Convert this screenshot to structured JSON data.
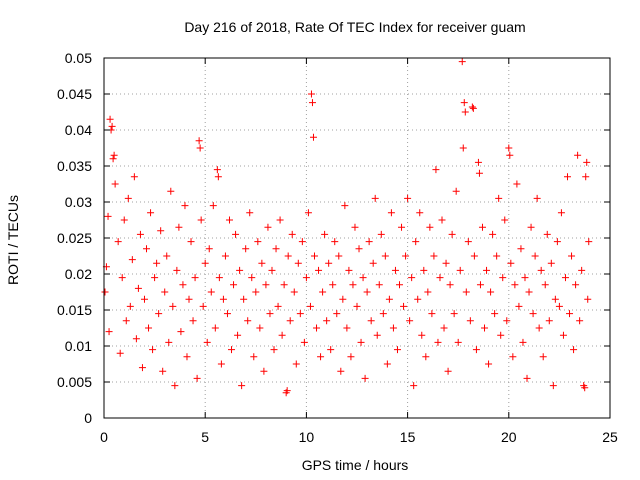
{
  "chart_data": {
    "type": "scatter",
    "title": "Day 216 of 2018, Rate Of TEC Index for receiver guam",
    "xlabel": "GPS time / hours",
    "ylabel": "ROTI / TECUs",
    "xlim": [
      0,
      25
    ],
    "ylim": [
      0,
      0.05
    ],
    "xticks": [
      0,
      5,
      10,
      15,
      20,
      25
    ],
    "xtick_labels": [
      "0",
      "5",
      "10",
      "15",
      "20",
      "25"
    ],
    "yticks": [
      0,
      0.005,
      0.01,
      0.015,
      0.02,
      0.025,
      0.03,
      0.035,
      0.04,
      0.045,
      0.05
    ],
    "ytick_labels": [
      "0",
      "0.005",
      "0.01",
      "0.015",
      "0.02",
      "0.025",
      "0.03",
      "0.035",
      "0.04",
      "0.045",
      "0.05"
    ],
    "grid": true,
    "marker": "+",
    "color": "#ff0000",
    "series": [
      {
        "name": "ROTI",
        "points": [
          [
            0.05,
            0.0175
          ],
          [
            0.12,
            0.021
          ],
          [
            0.2,
            0.028
          ],
          [
            0.25,
            0.012
          ],
          [
            0.3,
            0.0415
          ],
          [
            0.35,
            0.04
          ],
          [
            0.4,
            0.0405
          ],
          [
            0.45,
            0.036
          ],
          [
            0.5,
            0.0365
          ],
          [
            0.55,
            0.0325
          ],
          [
            0.7,
            0.0245
          ],
          [
            0.8,
            0.009
          ],
          [
            0.9,
            0.0195
          ],
          [
            1.0,
            0.0275
          ],
          [
            1.1,
            0.0135
          ],
          [
            1.2,
            0.0305
          ],
          [
            1.3,
            0.0155
          ],
          [
            1.4,
            0.022
          ],
          [
            1.5,
            0.0335
          ],
          [
            1.6,
            0.011
          ],
          [
            1.7,
            0.018
          ],
          [
            1.8,
            0.0255
          ],
          [
            1.9,
            0.007
          ],
          [
            2.0,
            0.0165
          ],
          [
            2.1,
            0.0235
          ],
          [
            2.2,
            0.0125
          ],
          [
            2.3,
            0.0285
          ],
          [
            2.4,
            0.0095
          ],
          [
            2.5,
            0.0195
          ],
          [
            2.6,
            0.0215
          ],
          [
            2.7,
            0.0145
          ],
          [
            2.8,
            0.026
          ],
          [
            2.9,
            0.0065
          ],
          [
            3.0,
            0.0175
          ],
          [
            3.1,
            0.0225
          ],
          [
            3.2,
            0.0105
          ],
          [
            3.3,
            0.0315
          ],
          [
            3.4,
            0.0155
          ],
          [
            3.5,
            0.0045
          ],
          [
            3.6,
            0.0205
          ],
          [
            3.7,
            0.0265
          ],
          [
            3.8,
            0.012
          ],
          [
            3.9,
            0.0185
          ],
          [
            4.0,
            0.0295
          ],
          [
            4.1,
            0.0085
          ],
          [
            4.2,
            0.0165
          ],
          [
            4.3,
            0.0245
          ],
          [
            4.4,
            0.0135
          ],
          [
            4.5,
            0.0195
          ],
          [
            4.6,
            0.0055
          ],
          [
            4.7,
            0.0385
          ],
          [
            4.75,
            0.0375
          ],
          [
            4.8,
            0.0275
          ],
          [
            4.9,
            0.0155
          ],
          [
            5.0,
            0.0215
          ],
          [
            5.1,
            0.0105
          ],
          [
            5.2,
            0.0235
          ],
          [
            5.3,
            0.0175
          ],
          [
            5.4,
            0.0295
          ],
          [
            5.5,
            0.0125
          ],
          [
            5.6,
            0.0345
          ],
          [
            5.65,
            0.0335
          ],
          [
            5.7,
            0.0195
          ],
          [
            5.8,
            0.0075
          ],
          [
            5.9,
            0.0165
          ],
          [
            6.0,
            0.0225
          ],
          [
            6.1,
            0.0145
          ],
          [
            6.2,
            0.0275
          ],
          [
            6.3,
            0.0095
          ],
          [
            6.4,
            0.0185
          ],
          [
            6.5,
            0.0255
          ],
          [
            6.6,
            0.0115
          ],
          [
            6.7,
            0.0205
          ],
          [
            6.8,
            0.0045
          ],
          [
            6.9,
            0.0165
          ],
          [
            7.0,
            0.0235
          ],
          [
            7.1,
            0.0135
          ],
          [
            7.2,
            0.0285
          ],
          [
            7.3,
            0.0195
          ],
          [
            7.4,
            0.0085
          ],
          [
            7.5,
            0.0175
          ],
          [
            7.6,
            0.0245
          ],
          [
            7.7,
            0.0125
          ],
          [
            7.8,
            0.0215
          ],
          [
            7.9,
            0.0065
          ],
          [
            8.0,
            0.0185
          ],
          [
            8.1,
            0.0265
          ],
          [
            8.2,
            0.0145
          ],
          [
            8.3,
            0.0205
          ],
          [
            8.4,
            0.0095
          ],
          [
            8.5,
            0.0235
          ],
          [
            8.6,
            0.0155
          ],
          [
            8.7,
            0.0275
          ],
          [
            8.8,
            0.0115
          ],
          [
            8.9,
            0.0185
          ],
          [
            9.0,
            0.0035
          ],
          [
            9.05,
            0.0038
          ],
          [
            9.1,
            0.0225
          ],
          [
            9.2,
            0.0135
          ],
          [
            9.3,
            0.0255
          ],
          [
            9.4,
            0.0175
          ],
          [
            9.5,
            0.0075
          ],
          [
            9.6,
            0.0215
          ],
          [
            9.7,
            0.0145
          ],
          [
            9.8,
            0.0245
          ],
          [
            9.9,
            0.0105
          ],
          [
            10.0,
            0.0195
          ],
          [
            10.1,
            0.0285
          ],
          [
            10.2,
            0.0155
          ],
          [
            10.25,
            0.045
          ],
          [
            10.3,
            0.0438
          ],
          [
            10.35,
            0.039
          ],
          [
            10.4,
            0.0225
          ],
          [
            10.5,
            0.0125
          ],
          [
            10.6,
            0.0205
          ],
          [
            10.7,
            0.0085
          ],
          [
            10.8,
            0.0175
          ],
          [
            10.9,
            0.0255
          ],
          [
            11.0,
            0.0135
          ],
          [
            11.1,
            0.0215
          ],
          [
            11.2,
            0.0095
          ],
          [
            11.3,
            0.0185
          ],
          [
            11.4,
            0.0245
          ],
          [
            11.5,
            0.0145
          ],
          [
            11.6,
            0.0225
          ],
          [
            11.7,
            0.0065
          ],
          [
            11.8,
            0.0165
          ],
          [
            11.9,
            0.0295
          ],
          [
            12.0,
            0.0125
          ],
          [
            12.1,
            0.0205
          ],
          [
            12.2,
            0.0085
          ],
          [
            12.3,
            0.0185
          ],
          [
            12.4,
            0.0265
          ],
          [
            12.5,
            0.0155
          ],
          [
            12.6,
            0.0235
          ],
          [
            12.7,
            0.0105
          ],
          [
            12.8,
            0.0195
          ],
          [
            12.9,
            0.0055
          ],
          [
            13.0,
            0.0175
          ],
          [
            13.1,
            0.0245
          ],
          [
            13.2,
            0.0135
          ],
          [
            13.3,
            0.0215
          ],
          [
            13.4,
            0.0305
          ],
          [
            13.5,
            0.0115
          ],
          [
            13.6,
            0.0185
          ],
          [
            13.7,
            0.0255
          ],
          [
            13.8,
            0.0145
          ],
          [
            13.9,
            0.0225
          ],
          [
            14.0,
            0.0075
          ],
          [
            14.1,
            0.0165
          ],
          [
            14.2,
            0.0285
          ],
          [
            14.3,
            0.0125
          ],
          [
            14.4,
            0.0205
          ],
          [
            14.5,
            0.0095
          ],
          [
            14.6,
            0.0185
          ],
          [
            14.7,
            0.0265
          ],
          [
            14.8,
            0.0155
          ],
          [
            14.9,
            0.0225
          ],
          [
            15.0,
            0.0305
          ],
          [
            15.1,
            0.0135
          ],
          [
            15.2,
            0.0195
          ],
          [
            15.3,
            0.0045
          ],
          [
            15.4,
            0.0245
          ],
          [
            15.5,
            0.0165
          ],
          [
            15.6,
            0.0285
          ],
          [
            15.7,
            0.0115
          ],
          [
            15.8,
            0.0205
          ],
          [
            15.9,
            0.0085
          ],
          [
            16.0,
            0.0175
          ],
          [
            16.1,
            0.0265
          ],
          [
            16.2,
            0.0145
          ],
          [
            16.3,
            0.0225
          ],
          [
            16.4,
            0.0345
          ],
          [
            16.5,
            0.0105
          ],
          [
            16.6,
            0.0195
          ],
          [
            16.7,
            0.0275
          ],
          [
            16.8,
            0.0125
          ],
          [
            16.9,
            0.0215
          ],
          [
            17.0,
            0.0065
          ],
          [
            17.1,
            0.0185
          ],
          [
            17.2,
            0.0255
          ],
          [
            17.3,
            0.0145
          ],
          [
            17.4,
            0.0315
          ],
          [
            17.5,
            0.0105
          ],
          [
            17.6,
            0.0205
          ],
          [
            17.7,
            0.0495
          ],
          [
            17.75,
            0.0375
          ],
          [
            17.8,
            0.0438
          ],
          [
            17.85,
            0.0425
          ],
          [
            17.9,
            0.0175
          ],
          [
            18.0,
            0.0245
          ],
          [
            18.1,
            0.0135
          ],
          [
            18.2,
            0.0432
          ],
          [
            18.25,
            0.043
          ],
          [
            18.3,
            0.0225
          ],
          [
            18.4,
            0.0095
          ],
          [
            18.5,
            0.0355
          ],
          [
            18.55,
            0.034
          ],
          [
            18.6,
            0.0185
          ],
          [
            18.7,
            0.0265
          ],
          [
            18.8,
            0.0125
          ],
          [
            18.9,
            0.0205
          ],
          [
            19.0,
            0.0075
          ],
          [
            19.1,
            0.0175
          ],
          [
            19.2,
            0.0255
          ],
          [
            19.3,
            0.0145
          ],
          [
            19.4,
            0.0225
          ],
          [
            19.5,
            0.0305
          ],
          [
            19.6,
            0.0115
          ],
          [
            19.7,
            0.0195
          ],
          [
            19.8,
            0.0275
          ],
          [
            19.9,
            0.0135
          ],
          [
            20.0,
            0.0375
          ],
          [
            20.05,
            0.0365
          ],
          [
            20.1,
            0.0215
          ],
          [
            20.2,
            0.0085
          ],
          [
            20.3,
            0.0185
          ],
          [
            20.4,
            0.0325
          ],
          [
            20.5,
            0.0155
          ],
          [
            20.6,
            0.0235
          ],
          [
            20.7,
            0.0105
          ],
          [
            20.8,
            0.0195
          ],
          [
            20.9,
            0.0055
          ],
          [
            21.0,
            0.0175
          ],
          [
            21.1,
            0.0265
          ],
          [
            21.2,
            0.0145
          ],
          [
            21.3,
            0.0225
          ],
          [
            21.4,
            0.0305
          ],
          [
            21.5,
            0.0125
          ],
          [
            21.6,
            0.0205
          ],
          [
            21.7,
            0.0085
          ],
          [
            21.8,
            0.0185
          ],
          [
            21.9,
            0.0255
          ],
          [
            22.0,
            0.0135
          ],
          [
            22.1,
            0.0215
          ],
          [
            22.2,
            0.0045
          ],
          [
            22.3,
            0.0165
          ],
          [
            22.4,
            0.0245
          ],
          [
            22.5,
            0.0155
          ],
          [
            22.6,
            0.0285
          ],
          [
            22.7,
            0.0115
          ],
          [
            22.8,
            0.0195
          ],
          [
            22.9,
            0.0335
          ],
          [
            23.0,
            0.0145
          ],
          [
            23.1,
            0.0225
          ],
          [
            23.2,
            0.0095
          ],
          [
            23.3,
            0.0185
          ],
          [
            23.4,
            0.0365
          ],
          [
            23.5,
            0.0135
          ],
          [
            23.6,
            0.0205
          ],
          [
            23.7,
            0.0045
          ],
          [
            23.75,
            0.0042
          ],
          [
            23.8,
            0.0335
          ],
          [
            23.85,
            0.0355
          ],
          [
            23.9,
            0.0165
          ],
          [
            23.95,
            0.0245
          ]
        ]
      }
    ]
  }
}
